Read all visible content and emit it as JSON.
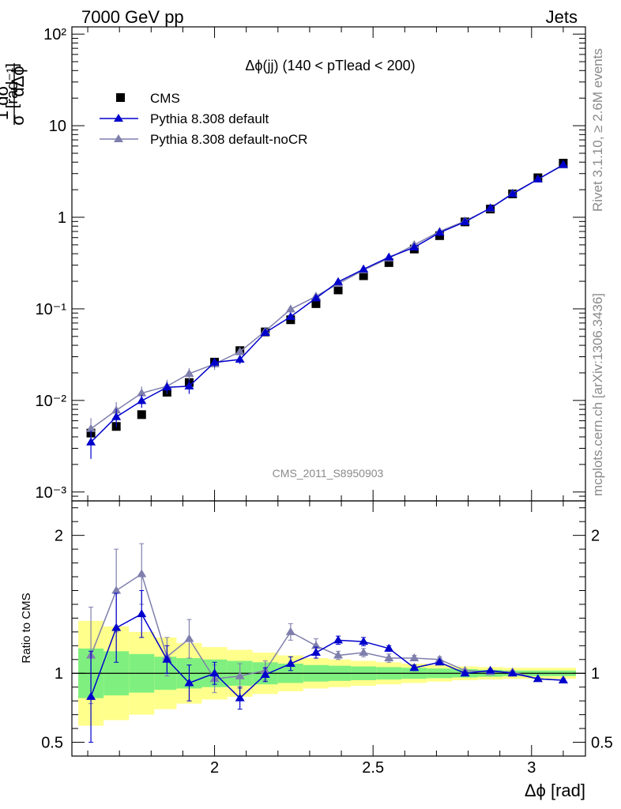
{
  "header": {
    "left": "7000 GeV pp",
    "right": "Jets"
  },
  "side": {
    "rivet": "Rivet 3.1.10, ≥ 2.6M events",
    "mcplots": "mcplots.cern.ch [arXiv:1306.3436]"
  },
  "chart_data": {
    "type": "scatter",
    "title": "Δϕ(jj) (140 < pTlead <  200)",
    "watermark": "CMS_2011_S8950903",
    "xlabel": "Δϕ [rad]",
    "ylabel": "1/σ dσ/dΔϕ [rad⁻¹]",
    "ratio_ylabel": "Ratio to CMS",
    "xlim": [
      1.55,
      3.17
    ],
    "ylim": [
      0.0008,
      120
    ],
    "ylog": true,
    "ratio_ylim": [
      0.4,
      2.25
    ],
    "x_ticks": [
      "2",
      "2.5",
      "3"
    ],
    "y_ticks": [
      "10⁻³",
      "10⁻²",
      "10⁻¹",
      "1",
      "10",
      "10²"
    ],
    "ratio_ticks": [
      "0.5",
      "1",
      "2"
    ],
    "x": [
      1.61,
      1.69,
      1.77,
      1.85,
      1.92,
      2.0,
      2.08,
      2.16,
      2.24,
      2.32,
      2.39,
      2.47,
      2.55,
      2.63,
      2.71,
      2.79,
      2.87,
      2.94,
      3.02,
      3.1
    ],
    "band_edges": [
      1.57,
      1.65,
      1.73,
      1.81,
      1.88,
      1.96,
      2.04,
      2.12,
      2.2,
      2.28,
      2.36,
      2.43,
      2.51,
      2.59,
      2.67,
      2.75,
      2.83,
      2.91,
      2.98,
      3.06,
      3.14
    ],
    "band_inner": [
      0.18,
      0.16,
      0.14,
      0.12,
      0.11,
      0.1,
      0.09,
      0.08,
      0.07,
      0.06,
      0.055,
      0.05,
      0.045,
      0.04,
      0.035,
      0.03,
      0.025,
      0.02,
      0.02,
      0.02
    ],
    "band_outer": [
      0.38,
      0.34,
      0.3,
      0.26,
      0.22,
      0.19,
      0.17,
      0.15,
      0.13,
      0.11,
      0.1,
      0.09,
      0.08,
      0.07,
      0.06,
      0.05,
      0.045,
      0.04,
      0.04,
      0.04
    ],
    "legend": [
      "CMS",
      "Pythia 8.308 default",
      "Pythia 8.308 default-noCR"
    ],
    "series": [
      {
        "name": "CMS",
        "color": "#000000",
        "values": [
          0.0044,
          0.0052,
          0.007,
          0.0123,
          0.0157,
          0.0262,
          0.035,
          0.056,
          0.076,
          0.114,
          0.161,
          0.23,
          0.32,
          0.45,
          0.63,
          0.89,
          1.23,
          1.8,
          2.7,
          3.9
        ]
      },
      {
        "name": "Pythia 8.308 default",
        "color": "#0000cc",
        "values": [
          0.0035,
          0.0066,
          0.0099,
          0.0139,
          0.0143,
          0.026,
          0.028,
          0.055,
          0.082,
          0.131,
          0.197,
          0.271,
          0.366,
          0.47,
          0.68,
          0.89,
          1.26,
          1.8,
          2.6,
          3.75
        ],
        "errors": [
          0.0012,
          0.0015,
          0.0016,
          0.002,
          0.0025,
          0.003,
          0.003,
          0.003,
          0.004,
          0.005,
          0.006,
          0.007,
          0.008,
          0.01,
          0.015,
          0.02,
          0.02,
          0.03,
          0.04,
          0.05
        ],
        "ratio": [
          0.83,
          1.33,
          1.43,
          1.1,
          0.93,
          1.0,
          0.82,
          0.99,
          1.07,
          1.15,
          1.24,
          1.23,
          1.18,
          1.04,
          1.08,
          1.0,
          1.02,
          1.0,
          0.96,
          0.95
        ],
        "ratio_errors": [
          0.33,
          0.25,
          0.17,
          0.1,
          0.13,
          0.08,
          0.08,
          0.05,
          0.05,
          0.04,
          0.03,
          0.03,
          0.02,
          0.02,
          0.01,
          0.01,
          0.01,
          0.01,
          0.01,
          0.01
        ]
      },
      {
        "name": "Pythia 8.308 default-noCR",
        "color": "#7f7fad",
        "values": [
          0.0049,
          0.0078,
          0.012,
          0.0143,
          0.0196,
          0.025,
          0.034,
          0.057,
          0.099,
          0.137,
          0.188,
          0.265,
          0.357,
          0.5,
          0.7,
          0.91,
          1.25,
          1.83,
          2.6,
          3.7
        ],
        "errors": [
          0.0015,
          0.0018,
          0.0022,
          0.0025,
          0.003,
          0.0035,
          0.004,
          0.004,
          0.006,
          0.007,
          0.008,
          0.009,
          0.01,
          0.012,
          0.015,
          0.02,
          0.02,
          0.03,
          0.04,
          0.05
        ],
        "ratio": [
          1.13,
          1.6,
          1.72,
          1.12,
          1.25,
          0.96,
          0.98,
          1.02,
          1.3,
          1.2,
          1.13,
          1.15,
          1.11,
          1.11,
          1.1,
          1.02,
          1.01,
          1.01,
          0.96,
          0.95
        ],
        "ratio_errors": [
          0.35,
          0.3,
          0.22,
          0.14,
          0.14,
          0.1,
          0.09,
          0.07,
          0.06,
          0.05,
          0.03,
          0.03,
          0.03,
          0.02,
          0.02,
          0.01,
          0.01,
          0.01,
          0.01,
          0.01
        ]
      }
    ]
  }
}
